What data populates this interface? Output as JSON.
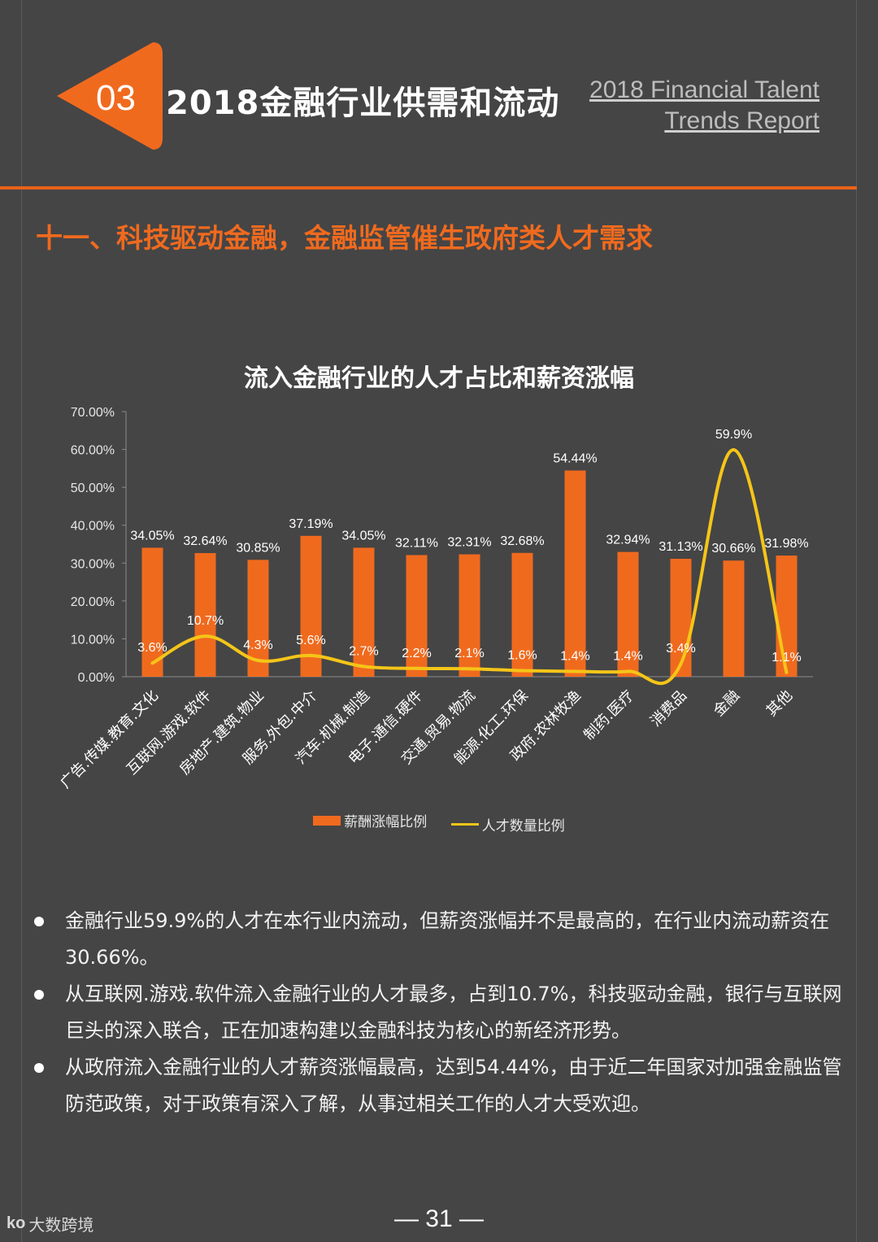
{
  "header": {
    "section_number": "03",
    "section_title": "2018金融行业供需和流动",
    "english_title_line1": "2018 Financial Talent",
    "english_title_line2": "Trends Report"
  },
  "subtitle": "十一、科技驱动金融，金融监管催生政府类人才需求",
  "colors": {
    "accent": "#f06a1e",
    "line": "#f5c518",
    "background": "#454545"
  },
  "chart_data": {
    "type": "bar",
    "title": "流入金融行业的人才占比和薪资涨幅",
    "categories": [
      "广告.传媒.教育.文化",
      "互联网.游戏.软件",
      "房地产.建筑.物业",
      "服务.外包.中介",
      "汽车.机械.制造",
      "电子.通信.硬件",
      "交通.贸易.物流",
      "能源.化工.环保",
      "政府.农林牧渔",
      "制药.医疗",
      "消费品",
      "金融",
      "其他"
    ],
    "series": [
      {
        "name": "薪酬涨幅比例",
        "type": "bar",
        "values": [
          34.05,
          32.64,
          30.85,
          37.19,
          34.05,
          32.11,
          32.31,
          32.68,
          54.44,
          32.94,
          31.13,
          30.66,
          31.98
        ],
        "labels": [
          "34.05%",
          "32.64%",
          "30.85%",
          "37.19%",
          "34.05%",
          "32.11%",
          "32.31%",
          "32.68%",
          "54.44%",
          "32.94%",
          "31.13%",
          "30.66%",
          "31.98%"
        ]
      },
      {
        "name": "人才数量比例",
        "type": "line",
        "values": [
          3.6,
          10.7,
          4.3,
          5.6,
          2.7,
          2.2,
          2.1,
          1.6,
          1.4,
          1.4,
          3.4,
          59.9,
          1.1
        ],
        "labels": [
          "3.6%",
          "10.7%",
          "4.3%",
          "5.6%",
          "2.7%",
          "2.2%",
          "2.1%",
          "1.6%",
          "1.4%",
          "1.4%",
          "3.4%",
          "59.9%",
          "1.1%"
        ]
      }
    ],
    "ylim": [
      0,
      70
    ],
    "yticks": [
      "0.00%",
      "10.00%",
      "20.00%",
      "30.00%",
      "40.00%",
      "50.00%",
      "60.00%",
      "70.00%"
    ],
    "legend": [
      "薪酬涨幅比例",
      "人才数量比例"
    ]
  },
  "bullets": [
    "金融行业59.9%的人才在本行业内流动，但薪资涨幅并不是最高的，在行业内流动薪资在30.66%。",
    "从互联网.游戏.软件流入金融行业的人才最多，占到10.7%，科技驱动金融，银行与互联网巨头的深入联合，正在加速构建以金融科技为核心的新经济形势。",
    "从政府流入金融行业的人才薪资涨幅最高，达到54.44%，由于近二年国家对加强金融监管防范政策，对于政策有深入了解，从事过相关工作的人才大受欢迎。"
  ],
  "page_number": "— 31 —",
  "watermark": {
    "logo": "ko",
    "text": "大数跨境"
  }
}
